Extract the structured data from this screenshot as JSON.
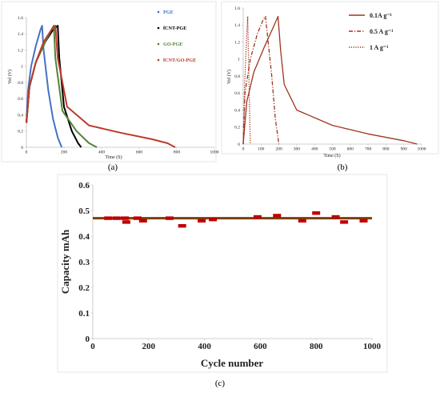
{
  "chart_data": [
    {
      "type": "line",
      "panel_label": "(a)",
      "xlabel": "Time (S)",
      "ylabel": "Vol (V)",
      "xlim": [
        0,
        1200
      ],
      "ylim": [
        0,
        1.6
      ],
      "xticks": [
        "0",
        "200",
        "400",
        "600",
        "800",
        "1000"
      ],
      "yticks": [
        "0",
        "0.2",
        "0.4",
        "0.6",
        "0.8",
        "1",
        "1.2",
        "1.4",
        "1.6"
      ],
      "legend_position": "top-right",
      "series": [
        {
          "name": "PGE",
          "color": "#4472C4",
          "x": [
            0,
            10,
            30,
            60,
            90,
            100,
            110,
            140,
            170,
            200,
            225
          ],
          "y": [
            0.3,
            0.7,
            1.0,
            1.25,
            1.45,
            1.5,
            1.2,
            0.7,
            0.35,
            0.12,
            0.0
          ]
        },
        {
          "name": "fCNT-PGE",
          "color": "#000000",
          "x": [
            0,
            20,
            60,
            120,
            170,
            200,
            210,
            240,
            290,
            330,
            350
          ],
          "y": [
            0.3,
            0.75,
            1.05,
            1.3,
            1.45,
            1.5,
            1.1,
            0.5,
            0.2,
            0.05,
            0.0
          ]
        },
        {
          "name": "GO-PGE",
          "color": "#548235",
          "x": [
            0,
            20,
            60,
            120,
            160,
            175,
            185,
            230,
            320,
            400,
            450
          ],
          "y": [
            0.3,
            0.75,
            1.05,
            1.3,
            1.45,
            1.5,
            1.1,
            0.45,
            0.2,
            0.05,
            0.0
          ]
        },
        {
          "name": "fCNT/GO-PGE",
          "color": "#C0392B",
          "x": [
            0,
            20,
            60,
            110,
            160,
            185,
            200,
            260,
            400,
            600,
            800,
            900,
            950
          ],
          "y": [
            0.3,
            0.75,
            1.05,
            1.3,
            1.45,
            1.5,
            1.1,
            0.5,
            0.27,
            0.18,
            0.1,
            0.05,
            0.0
          ]
        }
      ]
    },
    {
      "type": "line",
      "panel_label": "(b)",
      "xlabel": "Time (S)",
      "ylabel": "Vol (V)",
      "xlim": [
        0,
        1000
      ],
      "ylim": [
        0,
        1.6
      ],
      "xticks": [
        "0",
        "100",
        "200",
        "300",
        "400",
        "500",
        "600",
        "700",
        "800",
        "900",
        "1000"
      ],
      "yticks": [
        "0",
        "0.2",
        "0.4",
        "0.6",
        "0.8",
        "1",
        "1.2",
        "1.4",
        "1.6"
      ],
      "legend_position": "top-right",
      "series": [
        {
          "name": "0.1A g⁻¹",
          "color": "#A0341E",
          "dash": "solid",
          "x": [
            0,
            20,
            60,
            120,
            170,
            195,
            210,
            230,
            300,
            500,
            700,
            900,
            975
          ],
          "y": [
            0.0,
            0.5,
            0.85,
            1.15,
            1.38,
            1.5,
            1.1,
            0.7,
            0.4,
            0.22,
            0.12,
            0.04,
            0.0
          ]
        },
        {
          "name": "0.5 A g⁻¹",
          "color": "#A0341E",
          "dash": "dashdot",
          "x": [
            0,
            10,
            40,
            80,
            110,
            125,
            140,
            160,
            180,
            200
          ],
          "y": [
            0.0,
            0.6,
            1.0,
            1.3,
            1.45,
            1.5,
            1.2,
            0.8,
            0.3,
            0.0
          ]
        },
        {
          "name": "1 A g⁻¹",
          "color": "#A0341E",
          "dash": "dotted",
          "x": [
            0,
            8,
            18,
            25,
            32,
            40
          ],
          "y": [
            0.0,
            0.7,
            1.2,
            1.5,
            0.8,
            0.0
          ]
        }
      ]
    },
    {
      "type": "scatter",
      "panel_label": "(c)",
      "xlabel": "Cycle number",
      "ylabel": "Capacity mAh",
      "xlim": [
        0,
        1000
      ],
      "ylim": [
        0,
        0.6
      ],
      "xticks": [
        "0",
        "200",
        "400",
        "600",
        "800",
        "1000"
      ],
      "yticks": [
        "0",
        "0.1",
        "0.2",
        "0.3",
        "0.4",
        "0.5",
        "0.6"
      ],
      "trend_value": 0.47,
      "trend_color": "#7B3F00",
      "marker_color": "#C00000",
      "x": [
        55,
        85,
        115,
        120,
        160,
        180,
        275,
        320,
        390,
        430,
        590,
        660,
        750,
        800,
        870,
        900,
        970
      ],
      "y": [
        0.47,
        0.47,
        0.47,
        0.455,
        0.47,
        0.46,
        0.47,
        0.44,
        0.46,
        0.465,
        0.475,
        0.48,
        0.46,
        0.49,
        0.475,
        0.455,
        0.46
      ]
    }
  ]
}
